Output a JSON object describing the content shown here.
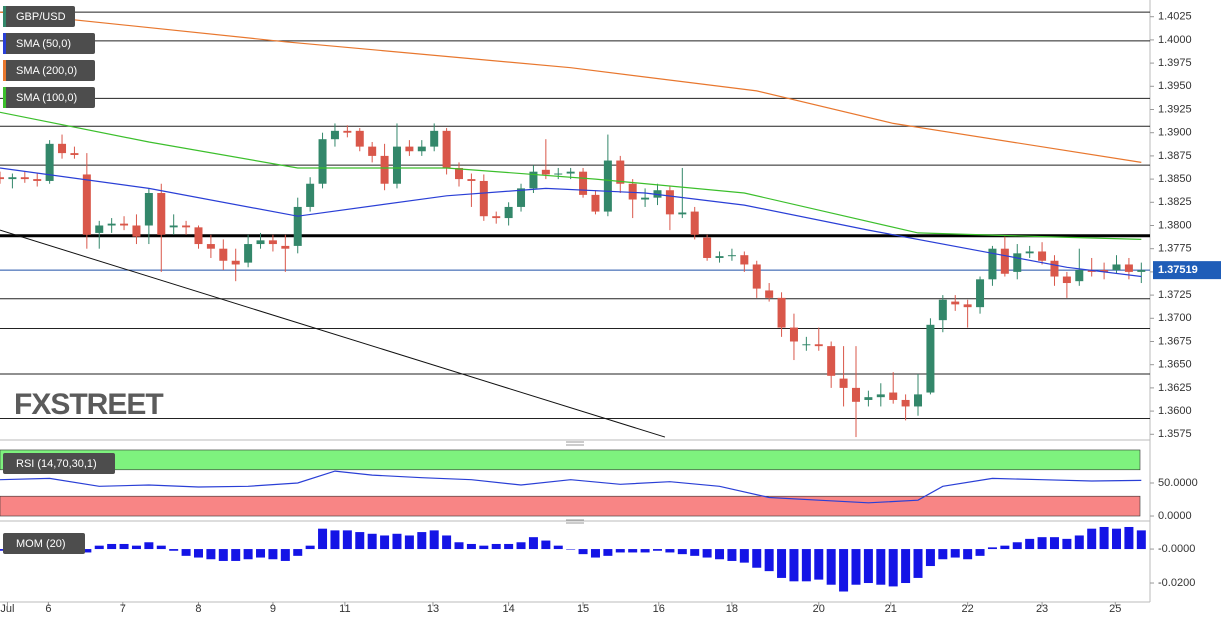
{
  "chart_data": {
    "type": "candlestick",
    "symbol": "GBP/USD",
    "watermark": "FXSTREET",
    "up_color": "#33876a",
    "down_color": "#d9574a",
    "candles": [
      [
        1.3852,
        1.3858,
        1.3845,
        1.385
      ],
      [
        1.385,
        1.3856,
        1.384,
        1.3852
      ],
      [
        1.3852,
        1.3858,
        1.3846,
        1.385
      ],
      [
        1.385,
        1.3856,
        1.3842,
        1.3848
      ],
      [
        1.3848,
        1.3892,
        1.3845,
        1.3888
      ],
      [
        1.3888,
        1.3898,
        1.3872,
        1.3878
      ],
      [
        1.3878,
        1.3885,
        1.3872,
        1.3876
      ],
      [
        1.3855,
        1.3878,
        1.3775,
        1.379
      ],
      [
        1.3792,
        1.3805,
        1.3775,
        1.38
      ],
      [
        1.38,
        1.3808,
        1.3792,
        1.3802
      ],
      [
        1.3802,
        1.381,
        1.3795,
        1.38
      ],
      [
        1.38,
        1.3812,
        1.378,
        1.3788
      ],
      [
        1.38,
        1.384,
        1.378,
        1.3835
      ],
      [
        1.3835,
        1.3845,
        1.375,
        1.379
      ],
      [
        1.3798,
        1.3812,
        1.379,
        1.38
      ],
      [
        1.38,
        1.3805,
        1.379,
        1.3798
      ],
      [
        1.3798,
        1.38,
        1.3775,
        1.378
      ],
      [
        1.378,
        1.379,
        1.3765,
        1.3775
      ],
      [
        1.3775,
        1.3785,
        1.3752,
        1.3762
      ],
      [
        1.3762,
        1.3775,
        1.374,
        1.3758
      ],
      [
        1.376,
        1.379,
        1.3755,
        1.378
      ],
      [
        1.378,
        1.3792,
        1.3775,
        1.3784
      ],
      [
        1.3784,
        1.379,
        1.3772,
        1.378
      ],
      [
        1.3778,
        1.379,
        1.375,
        1.3775
      ],
      [
        1.3778,
        1.383,
        1.377,
        1.382
      ],
      [
        1.382,
        1.3852,
        1.3815,
        1.3845
      ],
      [
        1.3845,
        1.39,
        1.384,
        1.3893
      ],
      [
        1.3893,
        1.391,
        1.3885,
        1.3902
      ],
      [
        1.3902,
        1.3908,
        1.3895,
        1.39
      ],
      [
        1.3902,
        1.3905,
        1.388,
        1.3885
      ],
      [
        1.3885,
        1.389,
        1.3868,
        1.3875
      ],
      [
        1.3875,
        1.3888,
        1.3838,
        1.3845
      ],
      [
        1.3845,
        1.391,
        1.384,
        1.3885
      ],
      [
        1.3885,
        1.3892,
        1.3875,
        1.388
      ],
      [
        1.388,
        1.3892,
        1.3875,
        1.3885
      ],
      [
        1.3885,
        1.391,
        1.388,
        1.3902
      ],
      [
        1.3902,
        1.3905,
        1.3855,
        1.3862
      ],
      [
        1.3862,
        1.3868,
        1.3842,
        1.385
      ],
      [
        1.385,
        1.3856,
        1.382,
        1.3848
      ],
      [
        1.3848,
        1.3855,
        1.3805,
        1.381
      ],
      [
        1.381,
        1.3815,
        1.3802,
        1.3808
      ],
      [
        1.3808,
        1.3825,
        1.38,
        1.382
      ],
      [
        1.382,
        1.3845,
        1.3815,
        1.384
      ],
      [
        1.384,
        1.3865,
        1.3835,
        1.3858
      ],
      [
        1.386,
        1.3893,
        1.385,
        1.3855
      ],
      [
        1.3855,
        1.3862,
        1.385,
        1.3856
      ],
      [
        1.3856,
        1.3862,
        1.385,
        1.3858
      ],
      [
        1.3858,
        1.3862,
        1.383,
        1.3833
      ],
      [
        1.3833,
        1.3838,
        1.3812,
        1.3815
      ],
      [
        1.3815,
        1.3898,
        1.381,
        1.387
      ],
      [
        1.387,
        1.3875,
        1.3835,
        1.3845
      ],
      [
        1.3845,
        1.385,
        1.3808,
        1.3828
      ],
      [
        1.3828,
        1.384,
        1.382,
        1.383
      ],
      [
        1.383,
        1.3845,
        1.3822,
        1.3838
      ],
      [
        1.3838,
        1.3842,
        1.3795,
        1.3812
      ],
      [
        1.3812,
        1.3862,
        1.3808,
        1.3814
      ],
      [
        1.3815,
        1.382,
        1.3785,
        1.379
      ],
      [
        1.3787,
        1.379,
        1.3762,
        1.3765
      ],
      [
        1.3765,
        1.3772,
        1.376,
        1.3767
      ],
      [
        1.3767,
        1.3775,
        1.3762,
        1.3768
      ],
      [
        1.3768,
        1.3772,
        1.375,
        1.3758
      ],
      [
        1.3758,
        1.3762,
        1.3722,
        1.3732
      ],
      [
        1.373,
        1.3738,
        1.3718,
        1.3722
      ],
      [
        1.3722,
        1.3728,
        1.368,
        1.369
      ],
      [
        1.369,
        1.3705,
        1.3655,
        1.3675
      ],
      [
        1.3672,
        1.368,
        1.3665,
        1.3672
      ],
      [
        1.3672,
        1.369,
        1.3665,
        1.367
      ],
      [
        1.367,
        1.3675,
        1.3625,
        1.3638
      ],
      [
        1.3635,
        1.367,
        1.3605,
        1.3625
      ],
      [
        1.3625,
        1.367,
        1.3572,
        1.361
      ],
      [
        1.3612,
        1.3622,
        1.3605,
        1.3615
      ],
      [
        1.3615,
        1.363,
        1.3605,
        1.3618
      ],
      [
        1.362,
        1.3642,
        1.3608,
        1.3612
      ],
      [
        1.3612,
        1.3618,
        1.359,
        1.3605
      ],
      [
        1.3605,
        1.364,
        1.3595,
        1.3618
      ],
      [
        1.362,
        1.37,
        1.3618,
        1.3693
      ],
      [
        1.3698,
        1.3725,
        1.3685,
        1.372
      ],
      [
        1.3718,
        1.3725,
        1.3708,
        1.3715
      ],
      [
        1.3715,
        1.372,
        1.369,
        1.3712
      ],
      [
        1.3712,
        1.3745,
        1.3705,
        1.3742
      ],
      [
        1.3742,
        1.3778,
        1.3735,
        1.3775
      ],
      [
        1.3775,
        1.3788,
        1.3745,
        1.3748
      ],
      [
        1.375,
        1.378,
        1.3742,
        1.377
      ],
      [
        1.377,
        1.3778,
        1.3765,
        1.3772
      ],
      [
        1.3772,
        1.3782,
        1.3758,
        1.3762
      ],
      [
        1.3762,
        1.3768,
        1.3735,
        1.3745
      ],
      [
        1.3745,
        1.375,
        1.3722,
        1.3738
      ],
      [
        1.374,
        1.3775,
        1.3735,
        1.3752
      ],
      [
        1.3752,
        1.3765,
        1.3745,
        1.375
      ],
      [
        1.3752,
        1.376,
        1.3742,
        1.375
      ],
      [
        1.3752,
        1.3768,
        1.3748,
        1.3758
      ],
      [
        1.3758,
        1.3765,
        1.3742,
        1.375
      ],
      [
        1.375,
        1.376,
        1.3738,
        1.3752
      ]
    ],
    "series": [
      {
        "name": "SMA (50,0)",
        "color": "#2a3fd6",
        "x": [
          0,
          12,
          24,
          36,
          44,
          52,
          60,
          70,
          80,
          86,
          92
        ],
        "values": [
          1.3862,
          1.384,
          1.381,
          1.3832,
          1.384,
          1.3835,
          1.3822,
          1.3795,
          1.377,
          1.3755,
          1.3745
        ]
      },
      {
        "name": "SMA (200,0)",
        "color": "#e8772e",
        "x": [
          0,
          23,
          46,
          61,
          72,
          92
        ],
        "values": [
          1.403,
          1.3998,
          1.397,
          1.3945,
          1.391,
          1.3868
        ]
      },
      {
        "name": "SMA (100,0)",
        "color": "#3cbf2c",
        "x": [
          0,
          12,
          24,
          36,
          48,
          60,
          74,
          84,
          92
        ],
        "values": [
          1.3922,
          1.389,
          1.3862,
          1.3862,
          1.385,
          1.3835,
          1.3792,
          1.3788,
          1.3785
        ]
      }
    ],
    "levels": [
      1.403,
      1.3999,
      1.3937,
      1.3907,
      1.3865,
      1.3721,
      1.3689,
      1.364,
      1.3592
    ],
    "key_level": 1.3789,
    "trendline": {
      "x": [
        0,
        53.6
      ],
      "values": [
        1.3795,
        1.3572
      ]
    },
    "last_price": 1.37519,
    "xlim": [
      0,
      92.7
    ],
    "xticks": [
      {
        "value": 0.6,
        "label": "Jul"
      },
      {
        "value": 3.9,
        "label": "6"
      },
      {
        "value": 9.9,
        "label": "7"
      },
      {
        "value": 16,
        "label": "8"
      },
      {
        "value": 22,
        "label": "9"
      },
      {
        "value": 27.8,
        "label": "11"
      },
      {
        "value": 34.9,
        "label": "13"
      },
      {
        "value": 41,
        "label": "14"
      },
      {
        "value": 47,
        "label": "15"
      },
      {
        "value": 53.1,
        "label": "16"
      },
      {
        "value": 59,
        "label": "18"
      },
      {
        "value": 66,
        "label": "20"
      },
      {
        "value": 71.8,
        "label": "21"
      },
      {
        "value": 78,
        "label": "22"
      },
      {
        "value": 84,
        "label": "23"
      },
      {
        "value": 89.9,
        "label": "25"
      }
    ],
    "ylim": [
      1.3571,
      1.4043
    ],
    "yticks": [
      {
        "value": 1.4025,
        "label": "1.4025"
      },
      {
        "value": 1.4,
        "label": "1.4000"
      },
      {
        "value": 1.3975,
        "label": "1.3975"
      },
      {
        "value": 1.395,
        "label": "1.3950"
      },
      {
        "value": 1.3925,
        "label": "1.3925"
      },
      {
        "value": 1.39,
        "label": "1.3900"
      },
      {
        "value": 1.3875,
        "label": "1.3875"
      },
      {
        "value": 1.385,
        "label": "1.3850"
      },
      {
        "value": 1.3825,
        "label": "1.3825"
      },
      {
        "value": 1.38,
        "label": "1.3800"
      },
      {
        "value": 1.3775,
        "label": "1.3775"
      },
      {
        "value": 1.375,
        "label": "1.3750"
      },
      {
        "value": 1.3725,
        "label": "1.3725"
      },
      {
        "value": 1.37,
        "label": "1.3700"
      },
      {
        "value": 1.3675,
        "label": "1.3675"
      },
      {
        "value": 1.365,
        "label": "1.3650"
      },
      {
        "value": 1.3625,
        "label": "1.3625"
      },
      {
        "value": 1.36,
        "label": "1.3600"
      },
      {
        "value": 1.3575,
        "label": "1.3575"
      }
    ],
    "rsi": {
      "type": "line",
      "name": "RSI (14,70,30,1)",
      "color": "#2a3fd6",
      "x": [
        0,
        4,
        8,
        12,
        16,
        20,
        24,
        27,
        30,
        34,
        38,
        42,
        46,
        50,
        54,
        58,
        62,
        66,
        70,
        74,
        76,
        80,
        84,
        88,
        92
      ],
      "values": [
        55,
        57,
        45,
        47,
        44,
        45,
        50,
        68,
        62,
        58,
        55,
        47,
        55,
        48,
        52,
        45,
        28,
        24,
        20,
        24,
        45,
        57,
        55,
        53,
        54
      ],
      "upper_band": [
        70,
        100
      ],
      "lower_band": [
        0,
        30
      ],
      "ylim": [
        -3,
        104.5
      ],
      "yticks": [
        {
          "value": 50,
          "label": "50.0000"
        },
        {
          "value": 0,
          "label": "0.0000"
        }
      ]
    },
    "mom": {
      "type": "bar",
      "name": "MOM (20)",
      "color": "#1414e6",
      "values": [
        -0.001,
        -0.001,
        -0.002,
        -0.001,
        -0.002,
        -0.001,
        -0.001,
        -0.002,
        0.002,
        0.003,
        0.003,
        0.002,
        0.004,
        0.002,
        -0.001,
        -0.004,
        -0.005,
        -0.006,
        -0.007,
        -0.007,
        -0.006,
        -0.005,
        -0.006,
        -0.007,
        -0.004,
        0.002,
        0.012,
        0.011,
        0.011,
        0.01,
        0.009,
        0.008,
        0.009,
        0.008,
        0.01,
        0.011,
        0.008,
        0.004,
        0.003,
        0.002,
        0.003,
        0.003,
        0.004,
        0.007,
        0.005,
        0.002,
        0.0,
        -0.003,
        -0.005,
        -0.004,
        -0.002,
        -0.002,
        -0.002,
        -0.001,
        -0.002,
        -0.003,
        -0.004,
        -0.005,
        -0.006,
        -0.007,
        -0.008,
        -0.011,
        -0.013,
        -0.017,
        -0.019,
        -0.019,
        -0.018,
        -0.021,
        -0.025,
        -0.021,
        -0.02,
        -0.021,
        -0.022,
        -0.02,
        -0.017,
        -0.01,
        -0.006,
        -0.005,
        -0.006,
        -0.004,
        0.001,
        0.002,
        0.004,
        0.006,
        0.007,
        0.007,
        0.006,
        0.008,
        0.012,
        0.013,
        0.012,
        0.013,
        0.011
      ],
      "ylim": [
        -0.03,
        0.0124
      ],
      "yticks": [
        {
          "value": 0,
          "label": "-0.0000"
        },
        {
          "value": -0.02,
          "label": "-0.0200"
        }
      ]
    }
  }
}
